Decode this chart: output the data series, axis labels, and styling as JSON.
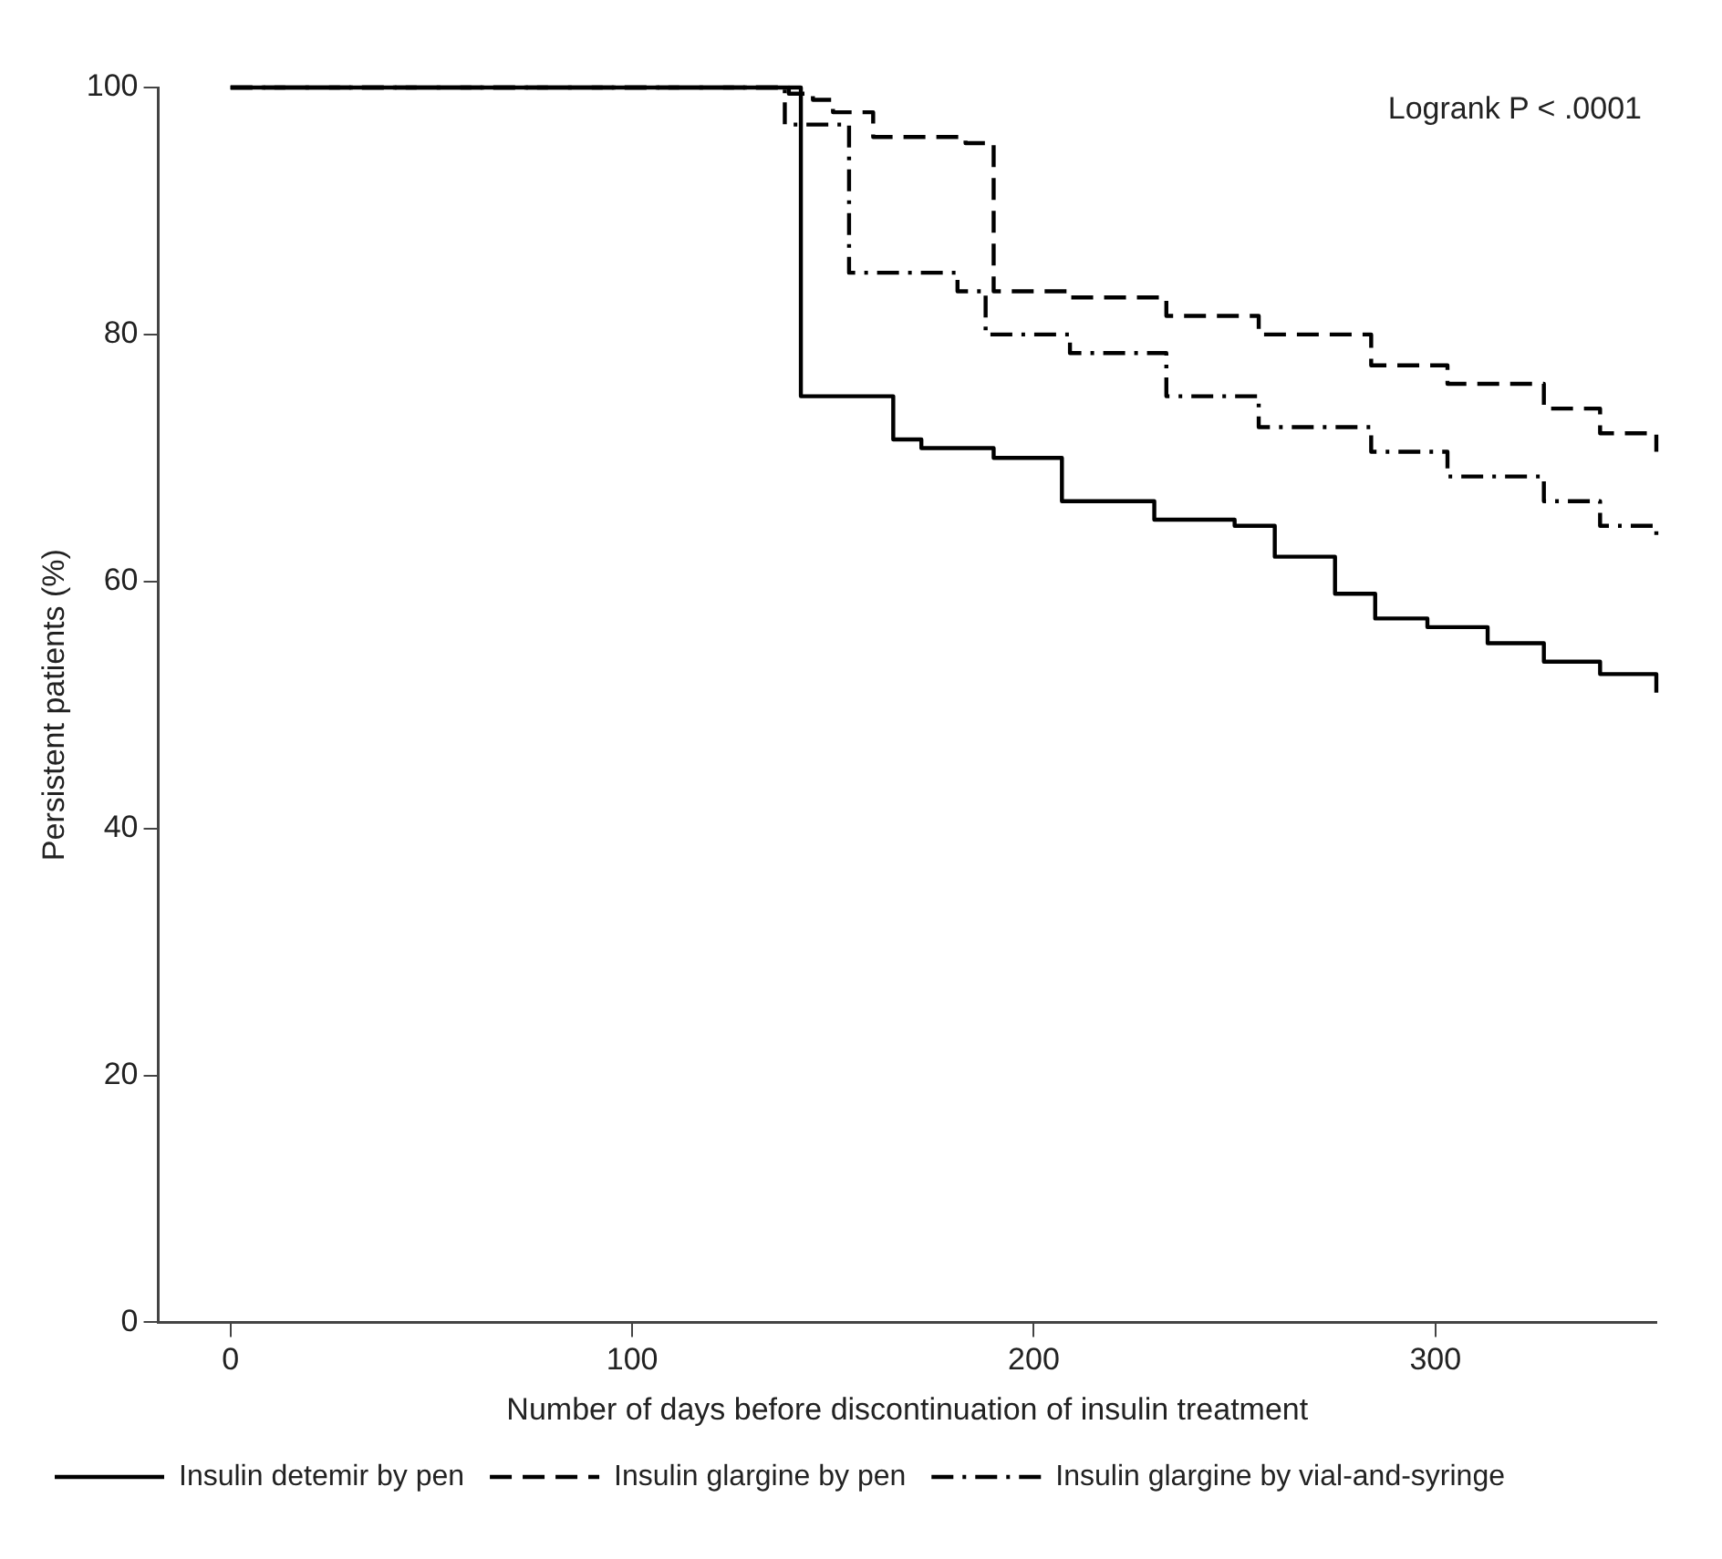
{
  "chart_data": {
    "type": "step",
    "xlabel": "Number of days before discontinuation of insulin treatment",
    "ylabel": "Persistent patients (%)",
    "annotations": [
      "Logrank P < .0001"
    ],
    "xlim": [
      -18,
      355
    ],
    "xticks": [
      0,
      100,
      200,
      300
    ],
    "ylim": [
      0,
      100
    ],
    "yticks": [
      0,
      20,
      40,
      60,
      80,
      100
    ],
    "grid": false,
    "legend": "bottom",
    "marker": "none",
    "series": [
      {
        "name": "Insulin detemir by pen",
        "color": "#000000",
        "line_style": "solid",
        "x": [
          0,
          142,
          165,
          172,
          190,
          207,
          230,
          250,
          260,
          275,
          285,
          298,
          313,
          327,
          341,
          355
        ],
        "values": [
          100,
          75,
          71.5,
          70.8,
          70,
          66.5,
          65,
          64.5,
          62,
          59,
          57,
          56.3,
          55,
          53.5,
          52.5,
          51
        ]
      },
      {
        "name": "Insulin glargine by pen",
        "color": "#000000",
        "line_style": "dashed",
        "x": [
          0,
          139,
          145,
          150,
          160,
          183,
          190,
          209,
          233,
          256,
          284,
          303,
          327,
          341,
          355
        ],
        "values": [
          100,
          99.5,
          99,
          98,
          96,
          95.5,
          83.5,
          83,
          81.5,
          80,
          77.5,
          76,
          74,
          72,
          70.5
        ]
      },
      {
        "name": "Insulin glargine by vial-and-syringe",
        "color": "#000000",
        "line_style": "dashdot",
        "x": [
          0,
          138,
          154,
          181,
          188,
          209,
          233,
          256,
          284,
          303,
          327,
          341,
          355
        ],
        "values": [
          100,
          97,
          85,
          83.5,
          80,
          78.5,
          75,
          72.5,
          70.5,
          68.5,
          66.5,
          64.5,
          63.5
        ]
      }
    ]
  }
}
